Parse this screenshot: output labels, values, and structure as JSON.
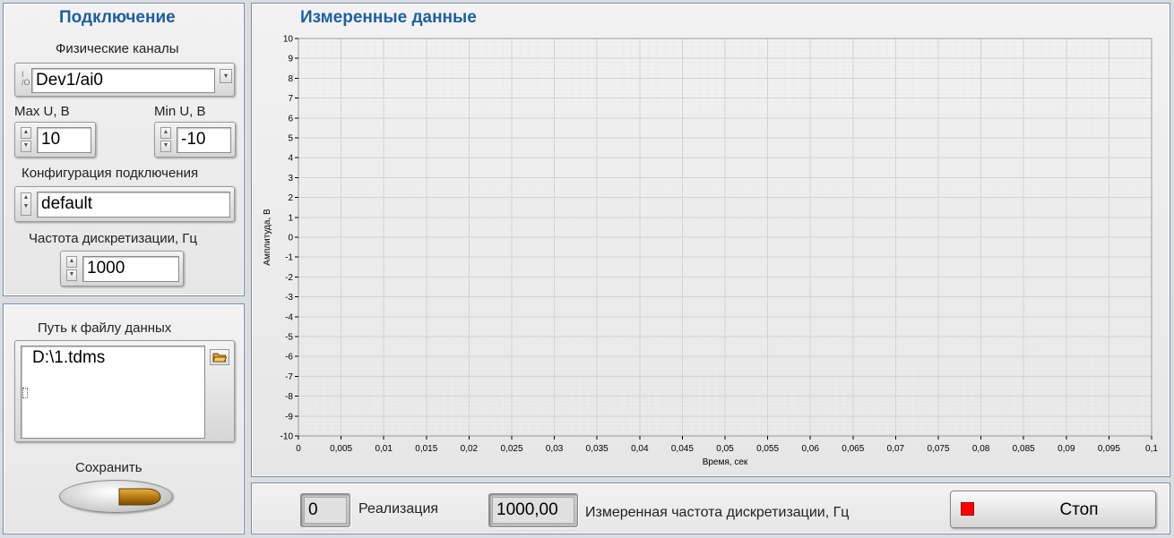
{
  "left_panel": {
    "title": "Подключение",
    "channels": {
      "label": "Физические каналы",
      "value": "Dev1/ai0",
      "io_icon": "io-channel-icon"
    },
    "max_u": {
      "label": "Max U, В",
      "value": "10"
    },
    "min_u": {
      "label": "Min U, В",
      "value": "-10"
    },
    "config": {
      "label": "Конфигурация подключения",
      "value": "default"
    },
    "rate": {
      "label": "Частота дискретизации, Гц",
      "value": "1000"
    }
  },
  "file_panel": {
    "label": "Путь к файлу данных",
    "value": "D:\\1.tdms",
    "browse_icon": "folder-open-icon",
    "save_label": "Сохранить"
  },
  "graph_panel": {
    "title": "Измеренные данные"
  },
  "bottom_bar": {
    "iteration_value": "0",
    "iteration_label": "Реализация",
    "measured_rate_value": "1000,00",
    "measured_rate_label": "Измеренная частота дискретизации, Гц",
    "stop_label": "Стоп",
    "stop_color": "#ff0000"
  },
  "chart_data": {
    "type": "line",
    "xlabel": "Время, сек",
    "ylabel": "Амплитуда, В",
    "xlim": [
      0,
      0.1
    ],
    "ylim": [
      -10,
      10
    ],
    "x_ticks": [
      "0",
      "0,005",
      "0,01",
      "0,015",
      "0,02",
      "0,025",
      "0,03",
      "0,035",
      "0,04",
      "0,045",
      "0,05",
      "0,055",
      "0,06",
      "0,065",
      "0,07",
      "0,075",
      "0,08",
      "0,085",
      "0,09",
      "0,095",
      "0,1"
    ],
    "y_ticks": [
      "10",
      "9",
      "8",
      "7",
      "6",
      "5",
      "4",
      "3",
      "2",
      "1",
      "0",
      "-1",
      "-2",
      "-3",
      "-4",
      "-5",
      "-6",
      "-7",
      "-8",
      "-9",
      "-10"
    ],
    "grid": true,
    "series": []
  }
}
